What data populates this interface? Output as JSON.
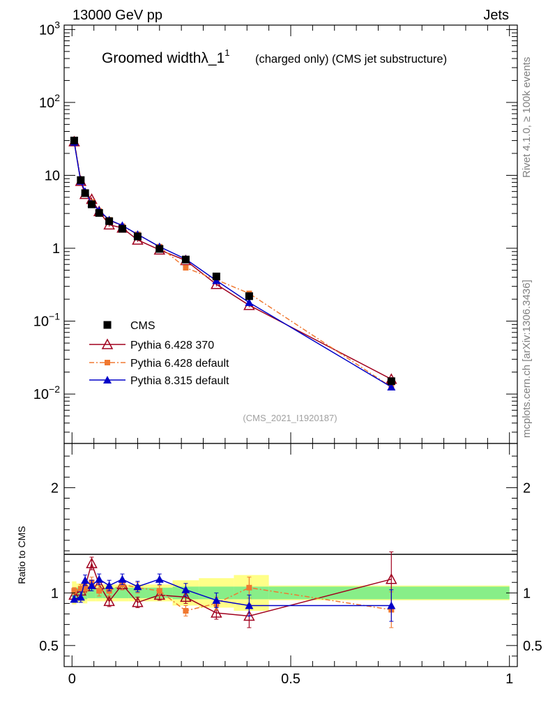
{
  "header": {
    "energy_label": "13000 GeV pp",
    "category_label": "Jets"
  },
  "side_labels": {
    "rivet": "Rivet 4.1.0, ≥ 100k events",
    "mcplots": "mcplots.cern.ch [arXiv:1306.3436]"
  },
  "chart_data": {
    "type": "line",
    "title": "Groomed widthλ_1",
    "title_superscript": "1",
    "subtitle": "(charged only) (CMS jet substructure)",
    "analysis_id": "(CMS_2021_I1920187)",
    "ylabel_ratio": "Ratio to CMS",
    "xlim": [
      0,
      1
    ],
    "ylim_main": [
      0.002,
      1000
    ],
    "ylim_ratio": [
      0.35,
      2.35
    ],
    "x_ticks": [
      {
        "v": 0,
        "label": "0"
      },
      {
        "v": 0.5,
        "label": "0.5"
      },
      {
        "v": 1,
        "label": "1"
      }
    ],
    "y_ticks_main": [
      {
        "v": 0.01,
        "base": "10",
        "exp": "−2"
      },
      {
        "v": 0.1,
        "base": "10",
        "exp": "−1"
      },
      {
        "v": 1,
        "base": "1",
        "exp": ""
      },
      {
        "v": 10,
        "base": "10",
        "exp": ""
      },
      {
        "v": 100,
        "base": "10",
        "exp": "2"
      },
      {
        "v": 1000,
        "base": "10",
        "exp": "3"
      }
    ],
    "y_ticks_ratio": [
      {
        "v": 0.5,
        "label": "0.5"
      },
      {
        "v": 1,
        "label": "1"
      },
      {
        "v": 2,
        "label": "2"
      }
    ],
    "x": [
      0.005,
      0.02,
      0.03,
      0.045,
      0.062,
      0.085,
      0.115,
      0.15,
      0.2,
      0.26,
      0.33,
      0.405,
      0.73
    ],
    "band_edges": [
      0,
      0.01,
      0.025,
      0.035,
      0.055,
      0.07,
      0.1,
      0.13,
      0.17,
      0.23,
      0.29,
      0.37,
      0.45,
      1.0
    ],
    "band_inner": [
      0.05,
      0.05,
      0.06,
      0.05,
      0.05,
      0.05,
      0.05,
      0.05,
      0.05,
      0.06,
      0.06,
      0.06,
      0.06
    ],
    "band_outer": [
      0.11,
      0.09,
      0.1,
      0.08,
      0.08,
      0.08,
      0.08,
      0.08,
      0.08,
      0.12,
      0.14,
      0.17,
      0.07
    ],
    "series": [
      {
        "name": "CMS",
        "color": "#000000",
        "marker": "square",
        "line": false,
        "values": [
          30,
          8.6,
          5.7,
          4.0,
          3.05,
          2.35,
          1.85,
          1.45,
          0.98,
          0.7,
          0.41,
          0.22,
          0.015
        ],
        "ratio": [
          1,
          1,
          1,
          1,
          1,
          1,
          1,
          1,
          1,
          1,
          1,
          1,
          1
        ]
      },
      {
        "name": "Pythia 6.428 370",
        "color": "#a0001e",
        "marker": "triangle-open",
        "dash": "",
        "values": [
          29,
          8.3,
          5.5,
          4.7,
          3.2,
          2.1,
          1.9,
          1.3,
          0.95,
          0.68,
          0.32,
          0.165,
          0.016
        ],
        "ratio": [
          0.98,
          1.02,
          1.06,
          1.28,
          1.08,
          0.92,
          1.08,
          0.91,
          0.98,
          0.96,
          0.81,
          0.78,
          1.13
        ],
        "ratio_err": [
          0.03,
          0.04,
          0.05,
          0.06,
          0.05,
          0.05,
          0.05,
          0.05,
          0.05,
          0.06,
          0.06,
          0.11,
          0.26
        ]
      },
      {
        "name": "Pythia 6.428 default",
        "color": "#f07830",
        "marker": "square-small",
        "dash": "7,3,2,3",
        "values": [
          30.5,
          8.8,
          5.8,
          4.3,
          3.25,
          2.45,
          2.0,
          1.55,
          1.05,
          0.54,
          0.37,
          0.24,
          0.0125
        ],
        "ratio": [
          1.02,
          1.04,
          1.04,
          1.1,
          1.02,
          1.02,
          1.08,
          1.05,
          1.02,
          0.83,
          0.9,
          1.05,
          0.84
        ],
        "ratio_err": [
          0.03,
          0.04,
          0.04,
          0.05,
          0.05,
          0.05,
          0.05,
          0.05,
          0.05,
          0.05,
          0.06,
          0.1,
          0.17
        ]
      },
      {
        "name": "Pythia 8.315 default",
        "color": "#0000c8",
        "marker": "triangle",
        "dash": "",
        "values": [
          28.5,
          8.3,
          6.0,
          4.1,
          3.3,
          2.45,
          2.05,
          1.55,
          1.05,
          0.71,
          0.36,
          0.18,
          0.0125
        ],
        "ratio": [
          0.94,
          0.96,
          1.12,
          1.07,
          1.13,
          1.07,
          1.13,
          1.06,
          1.13,
          1.03,
          0.93,
          0.88,
          0.88
        ],
        "ratio_err": [
          0.03,
          0.05,
          0.05,
          0.05,
          0.05,
          0.05,
          0.05,
          0.05,
          0.05,
          0.06,
          0.07,
          0.1,
          0.15
        ]
      }
    ]
  }
}
